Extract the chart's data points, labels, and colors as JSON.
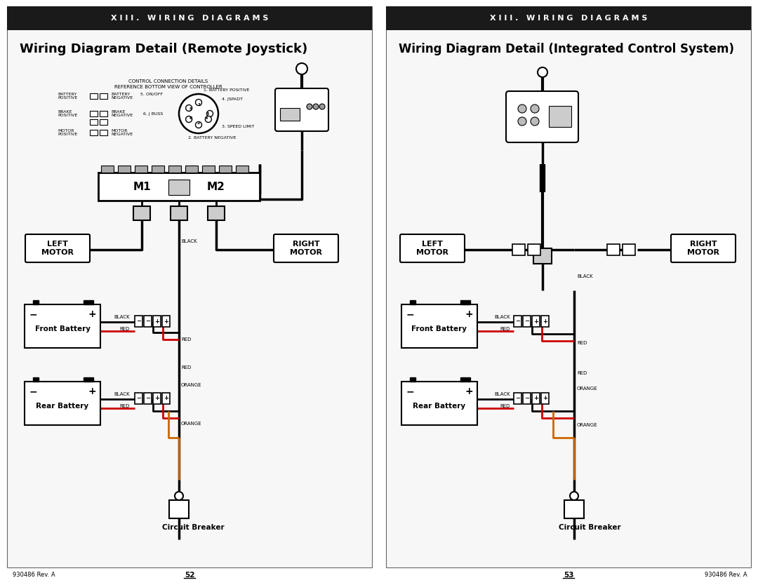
{
  "page_bg": "#ffffff",
  "header_bg": "#1a1a1a",
  "header_text": "#ffffff",
  "header_label": "X I I I .   W I R I N G   D I A G R A M S",
  "left_title": "Wiring Diagram Detail (Remote Joystick)",
  "right_title": "Wiring Diagram Detail (Integrated Control System)",
  "left_page": "52",
  "right_page": "53",
  "footer_doc": "930486 Rev. A",
  "title_fontsize": 13,
  "header_fontsize": 8,
  "small_fontsize": 5.0
}
